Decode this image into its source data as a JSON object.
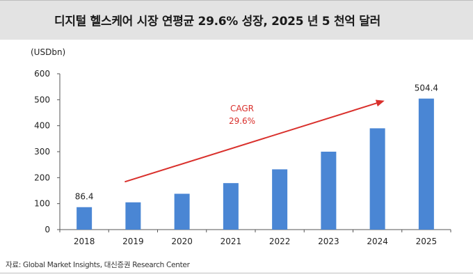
{
  "header": {
    "title": "디지털 헬스케어 시장 연평균 29.6% 성장, 2025 년 5 천억 달러"
  },
  "footer": {
    "source": "자료: Global Market Insights, 대신증권 Research Center"
  },
  "colors": {
    "bar": "#4a86d4",
    "arrow": "#d9302c",
    "annotation": "#d9302c",
    "header_bg": "#e3e3e3"
  },
  "chart_data": {
    "type": "bar",
    "title": "",
    "unit_label": "(USDbn)",
    "xlabel": "",
    "ylabel": "",
    "categories": [
      "2018",
      "2019",
      "2020",
      "2021",
      "2022",
      "2023",
      "2024",
      "2025"
    ],
    "values": [
      86.4,
      105,
      138,
      179,
      232,
      300,
      390,
      504.4
    ],
    "data_labels": [
      {
        "category": "2018",
        "text": "86.4"
      },
      {
        "category": "2025",
        "text": "504.4"
      }
    ],
    "ylim": [
      0,
      600
    ],
    "yticks": [
      0,
      100,
      200,
      300,
      400,
      500,
      600
    ],
    "grid": false,
    "legend": "none",
    "annotation": {
      "lines": [
        "CAGR",
        "29.6%"
      ],
      "arrow_from": {
        "category": "2019",
        "value": 200
      },
      "arrow_to": {
        "category": "2025",
        "value": 500
      }
    }
  }
}
